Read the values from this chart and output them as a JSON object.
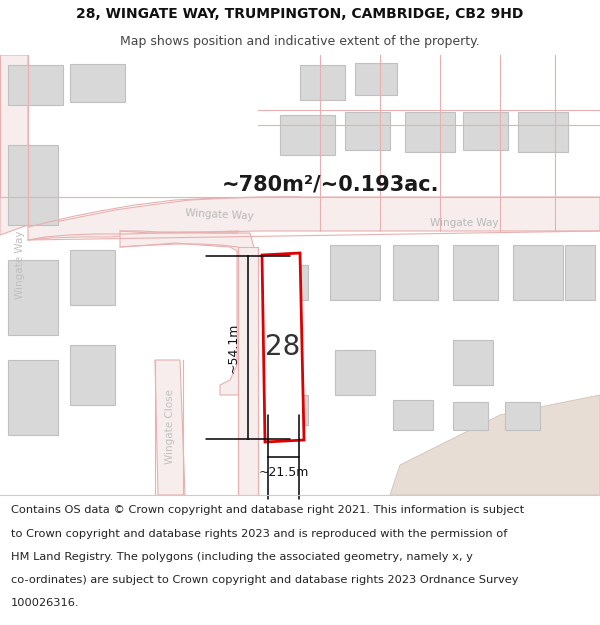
{
  "title_line1": "28, WINGATE WAY, TRUMPINGTON, CAMBRIDGE, CB2 9HD",
  "title_line2": "Map shows position and indicative extent of the property.",
  "area_label": "~780m²/~0.193ac.",
  "width_label": "~21.5m",
  "height_label": "~54.1m",
  "number_label": "28",
  "footer_lines": [
    "Contains OS data © Crown copyright and database right 2021. This information is subject",
    "to Crown copyright and database rights 2023 and is reproduced with the permission of",
    "HM Land Registry. The polygons (including the associated geometry, namely x, y",
    "co-ordinates) are subject to Crown copyright and database rights 2023 Ordnance Survey",
    "100026316."
  ],
  "map_bg": "#ffffff",
  "footer_bg": "#ede9e4",
  "road_fill": "#f7eded",
  "road_stroke": "#e8b0b0",
  "bldg_fill": "#d8d8d8",
  "bldg_stroke": "#c0c0c0",
  "highlight_stroke": "#dd0000",
  "highlight_fill": "#ffffff",
  "title_fontsize": 10,
  "subtitle_fontsize": 9,
  "area_fontsize": 15,
  "number_fontsize": 20,
  "dim_fontsize": 9,
  "footer_fontsize": 8.2,
  "street_fontsize": 7.5
}
